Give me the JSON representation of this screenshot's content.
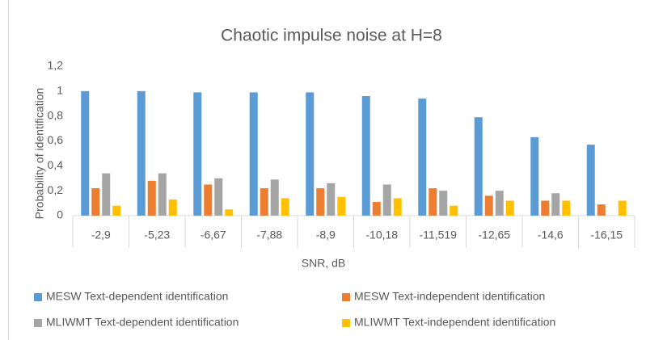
{
  "chart_data": {
    "type": "bar",
    "title": "Chaotic impulse noise at H=8",
    "x_label": "SNR, dB",
    "y_label": "Probability of identification",
    "categories": [
      "-2,9",
      "-5,23",
      "-6,67",
      "-7,88",
      "-8,9",
      "-10,18",
      "-11,519",
      "-12,65",
      "-14,6",
      "-16,15"
    ],
    "series": [
      {
        "name": "MESW Text-dependent identification",
        "color": "#5b9bd5",
        "values": [
          1,
          1,
          0.99,
          0.99,
          0.99,
          0.96,
          0.94,
          0.79,
          0.63,
          0.57
        ]
      },
      {
        "name": "MESW Text-independent identification",
        "color": "#ed7d31",
        "values": [
          0.22,
          0.28,
          0.25,
          0.22,
          0.22,
          0.11,
          0.22,
          0.16,
          0.12,
          0.09
        ]
      },
      {
        "name": "MLIWMT Text-dependent identification",
        "color": "#a5a5a5",
        "values": [
          0.34,
          0.34,
          0.3,
          0.29,
          0.26,
          0.25,
          0.2,
          0.2,
          0.18,
          0
        ]
      },
      {
        "name": "MLIWMT Text-independent identification",
        "color": "#ffc000",
        "values": [
          0.08,
          0.13,
          0.05,
          0.14,
          0.15,
          0.14,
          0.08,
          0.12,
          0.12,
          0.12
        ]
      }
    ],
    "ylim": [
      0,
      1.2
    ],
    "yticks": [
      0,
      {
        "value": 0.2,
        "label": "0,2"
      },
      {
        "value": 0.4,
        "label": "0,4"
      },
      {
        "value": 0.6,
        "label": "0,6"
      },
      {
        "value": 0.8,
        "label": "0,8"
      },
      1,
      {
        "value": 1.2,
        "label": "1,2"
      }
    ],
    "grid": false,
    "legend": "bottom"
  }
}
